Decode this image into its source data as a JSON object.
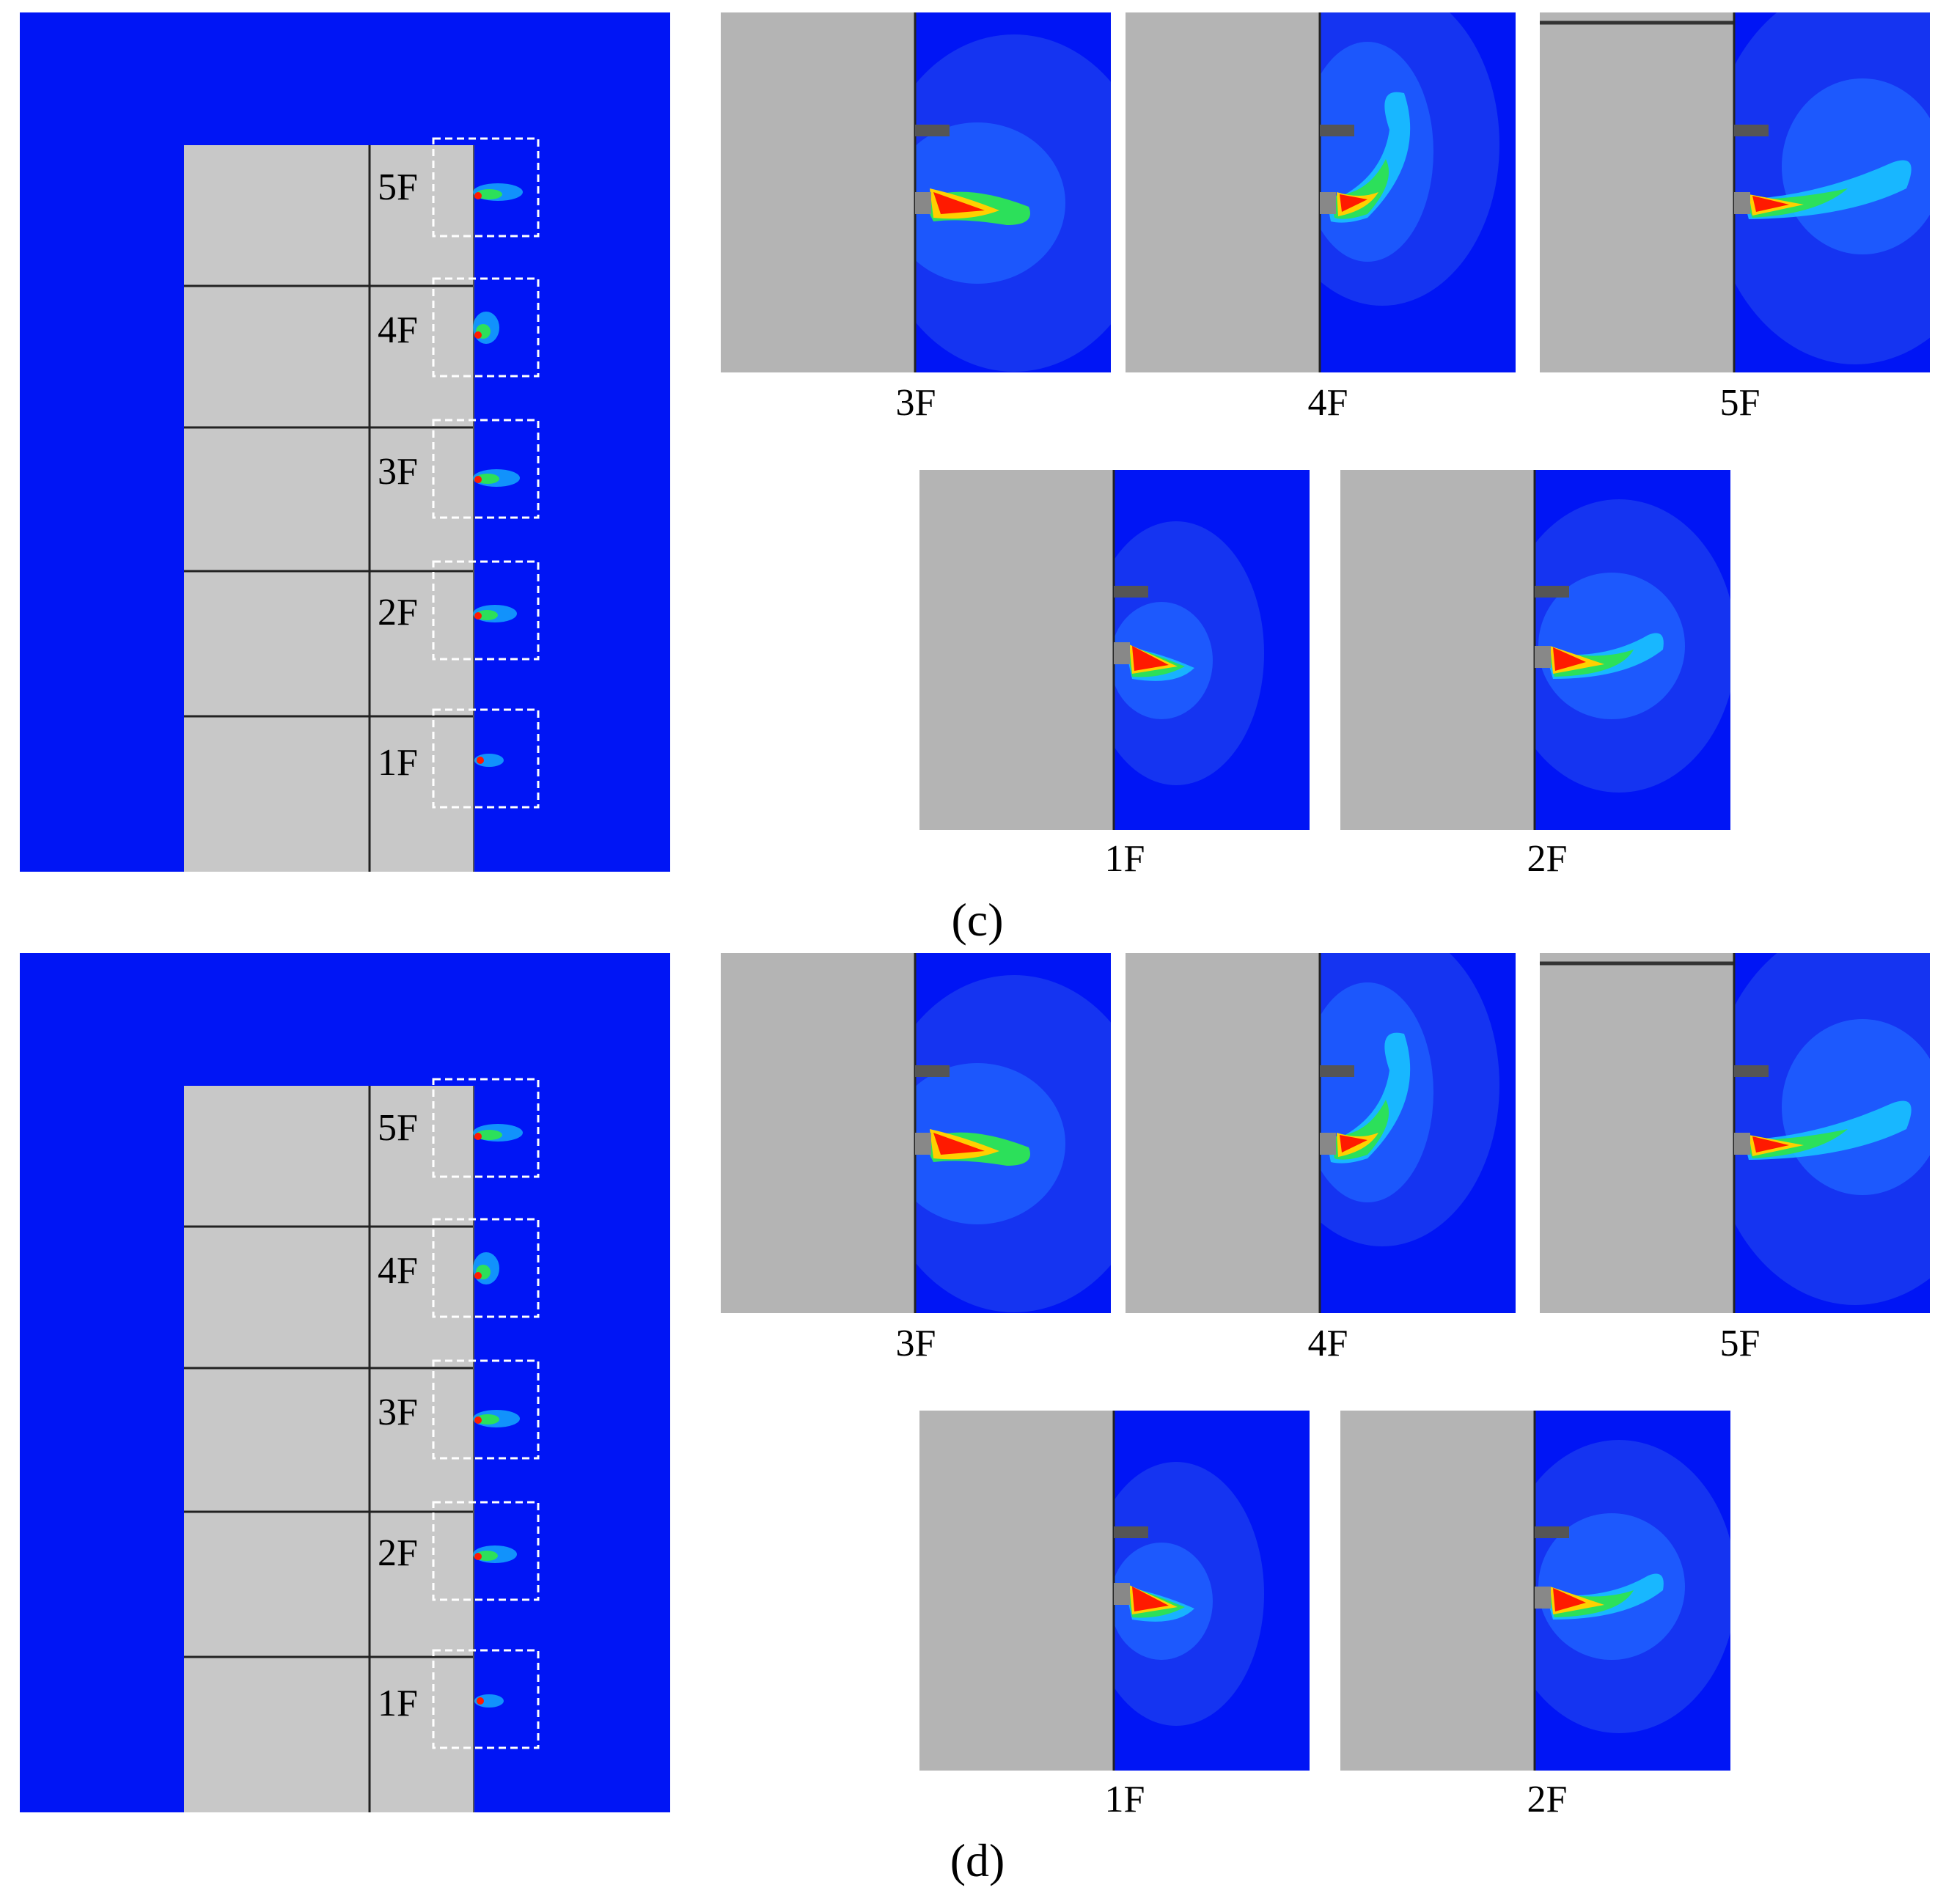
{
  "colors": {
    "domain_blue": "#0015f5",
    "building_gray": "#c8c8c8",
    "panel_gray": "#b4b4b4",
    "box_dash": "#ffffff",
    "plume_red": "#ff1a00",
    "plume_yellow": "#ffd000",
    "plume_green": "#2ce05a",
    "plume_cyan": "#18c8ff"
  },
  "figures": [
    {
      "caption": "(c)",
      "floors": [
        "5F",
        "4F",
        "3F",
        "2F",
        "1F"
      ],
      "detail_top": [
        "3F",
        "4F",
        "5F"
      ],
      "detail_bottom": [
        "1F",
        "2F"
      ]
    },
    {
      "caption": "(d)",
      "floors": [
        "5F",
        "4F",
        "3F",
        "2F",
        "1F"
      ],
      "detail_top": [
        "3F",
        "4F",
        "5F"
      ],
      "detail_bottom": [
        "1F",
        "2F"
      ]
    }
  ]
}
